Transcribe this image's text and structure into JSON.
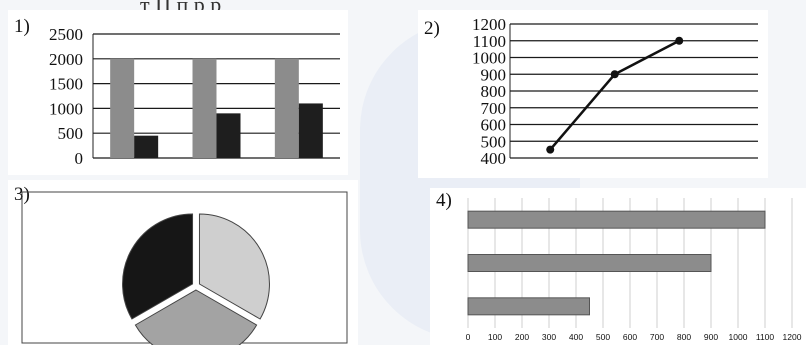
{
  "header_fragment": "т  Ц                п       р                р",
  "chart_data": [
    {
      "label": "1)",
      "type": "bar",
      "categories": [
        "",
        "",
        ""
      ],
      "series": [
        {
          "values": [
            2000,
            2000,
            2000
          ],
          "color": "#8c8c8c"
        },
        {
          "values": [
            450,
            900,
            1100
          ],
          "color": "#1e1e1e"
        }
      ],
      "ylim": [
        0,
        2500
      ],
      "yticks": [
        0,
        500,
        1000,
        1500,
        2000,
        2500
      ],
      "ytick_labels": [
        "0",
        "500",
        "1000",
        "1500",
        "2000",
        "2500"
      ],
      "grid": true,
      "legend": "none"
    },
    {
      "label": "2)",
      "type": "line",
      "x": [
        1,
        2,
        3
      ],
      "series": [
        {
          "values": [
            450,
            900,
            1100
          ],
          "color": "#111111"
        }
      ],
      "ylim": [
        400,
        1200
      ],
      "yticks": [
        400,
        500,
        600,
        700,
        800,
        900,
        1000,
        1100,
        1200
      ],
      "ytick_labels": [
        "400",
        "500",
        "600",
        "700",
        "800",
        "900",
        "1000",
        "1100",
        "1200"
      ],
      "grid": true,
      "legend": "none"
    },
    {
      "label": "3)",
      "type": "pie",
      "values": [
        1,
        1,
        1
      ],
      "colors": [
        "#cfcfcf",
        "#a3a3a3",
        "#161616"
      ],
      "legend": "none"
    },
    {
      "label": "4)",
      "type": "bar",
      "orientation": "horizontal",
      "values": [
        1100,
        900,
        450
      ],
      "color": "#8c8c8c",
      "xlim": [
        0,
        1200
      ],
      "xticks": [
        0,
        100,
        200,
        300,
        400,
        500,
        600,
        700,
        800,
        900,
        1000,
        1100,
        1200
      ],
      "xtick_labels": [
        "0",
        "100",
        "200",
        "300",
        "400",
        "500",
        "600",
        "700",
        "800",
        "900",
        "1000",
        "1100",
        "1200"
      ],
      "grid": true,
      "legend": "none"
    }
  ]
}
